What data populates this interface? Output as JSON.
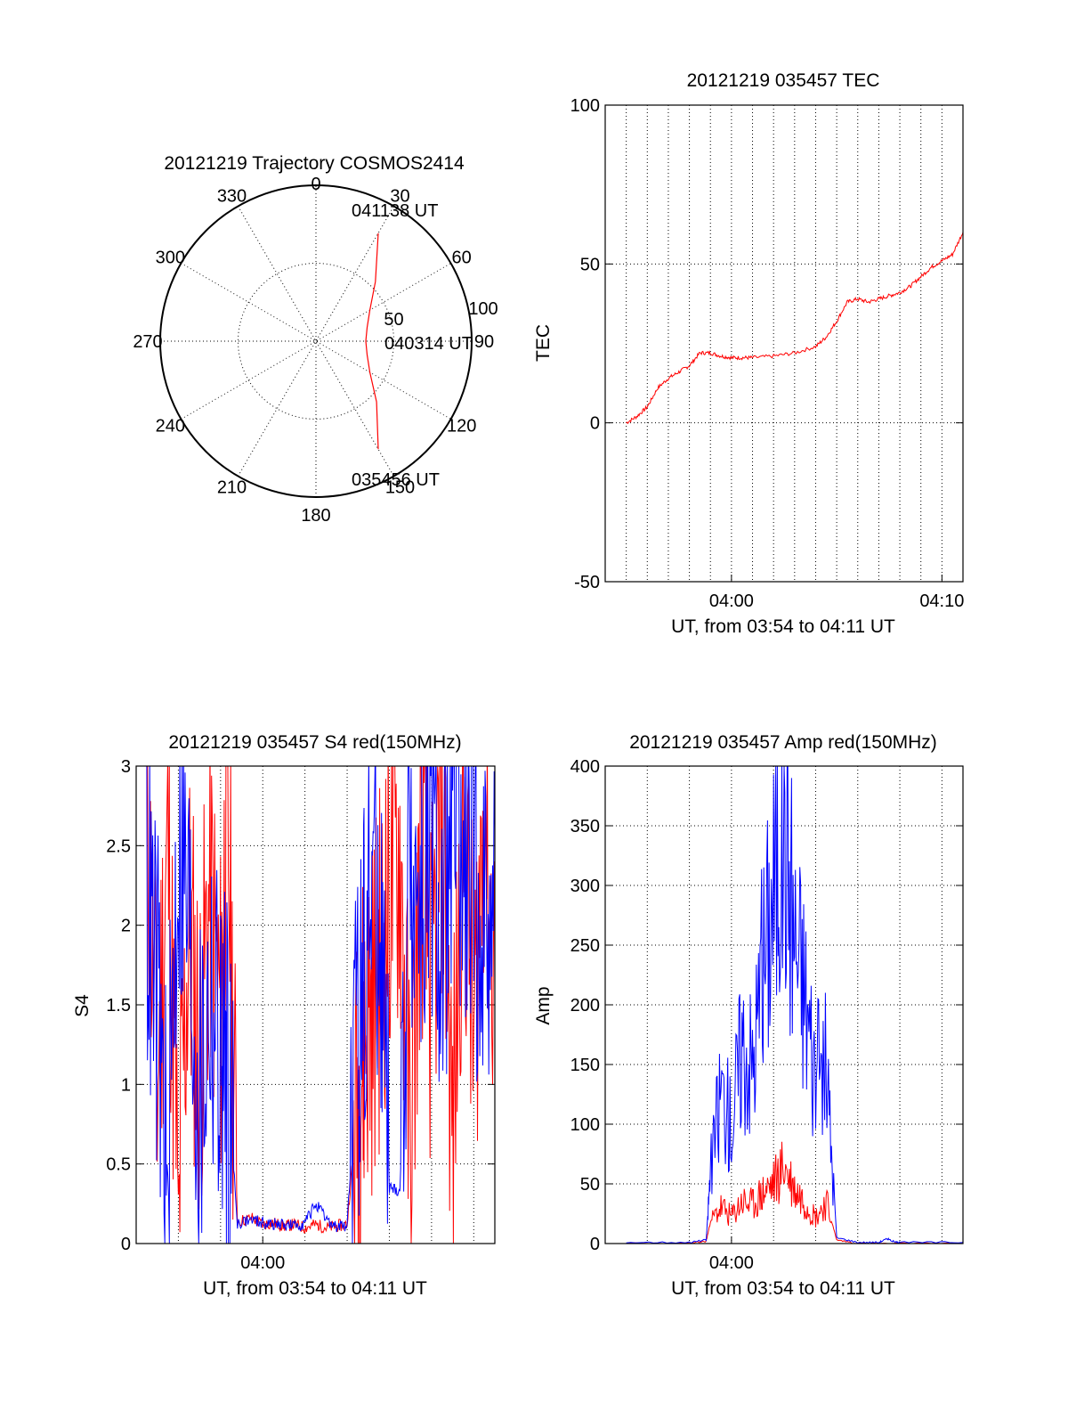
{
  "chart_data": [
    {
      "type": "polar",
      "title": "20121219 Trajectory COSMOS2414",
      "angle_labels": [
        "0",
        "30",
        "60",
        "90",
        "120",
        "150",
        "180",
        "210",
        "240",
        "270",
        "300",
        "330"
      ],
      "radius_labels": [
        "50",
        "100"
      ],
      "series": [
        {
          "points": [
            [
              30,
              80
            ],
            [
              45,
              54
            ],
            [
              60,
              40
            ],
            [
              75,
              34
            ],
            [
              90,
              32
            ],
            [
              105,
              34
            ],
            [
              120,
              40
            ],
            [
              135,
              55
            ],
            [
              150,
              80
            ]
          ]
        }
      ],
      "annotations": [
        "041138 UT",
        "040314 UT",
        "035456 UT"
      ],
      "colors": {
        "trajectory": "#ff0000"
      }
    },
    {
      "type": "line",
      "title": "20121219 035457 TEC",
      "xlabel": "UT, from 03:54 to 04:11 UT",
      "ylabel": "TEC",
      "xlim": [
        0,
        17.0
      ],
      "ylim": [
        -50,
        100
      ],
      "yticks": [
        -50,
        0,
        50,
        100
      ],
      "xticks": [
        {
          "v": 6,
          "label": "04:00"
        },
        {
          "v": 16,
          "label": "04:10"
        }
      ],
      "grid": true,
      "series": [
        {
          "color": "#ff0000",
          "x": [
            1.0,
            1.5,
            2.0,
            2.5,
            3.0,
            3.5,
            4.0,
            4.5,
            5.0,
            5.5,
            6.0,
            6.5,
            7.0,
            8.0,
            9.0,
            10.0,
            10.5,
            11.0,
            11.5,
            12.0,
            12.5,
            13.0,
            13.5,
            14.0,
            14.5,
            15.0,
            15.5,
            16.0,
            16.5,
            17.0
          ],
          "y": [
            0,
            2,
            5,
            11,
            14,
            16,
            18,
            22,
            22,
            21,
            20.5,
            20.5,
            20.5,
            21,
            22,
            24,
            27,
            32,
            38,
            39,
            38,
            39,
            40,
            41,
            43,
            46,
            49,
            51,
            53,
            60
          ]
        }
      ]
    },
    {
      "type": "line",
      "title": "20121219 035457 S4 red(150MHz)",
      "xlabel": "UT, from 03:54 to 04:11 UT",
      "ylabel": "S4",
      "xlim": [
        0,
        17.0
      ],
      "ylim": [
        0,
        3
      ],
      "yticks": [
        0,
        0.5,
        1,
        1.5,
        2,
        2.5,
        3
      ],
      "xticks": [
        {
          "v": 6,
          "label": "04:00"
        }
      ],
      "grid": true,
      "series": [
        {
          "color": "#ff0000",
          "x": [
            0.5,
            1.0,
            1.5,
            2.0,
            2.5,
            3.0,
            3.5,
            4.0,
            4.3,
            4.8,
            5.5,
            6.0,
            6.5,
            7.0,
            7.5,
            8.0,
            8.5,
            9.0,
            9.5,
            10.0,
            10.5,
            10.8,
            11.2,
            11.6,
            12.0,
            12.5,
            13.0,
            13.5,
            14.0,
            14.5,
            15.0,
            15.5,
            16.0,
            16.5,
            17.0
          ],
          "y": [
            2.8,
            1.0,
            2.5,
            0.3,
            2.0,
            1.2,
            2.2,
            1.4,
            2.9,
            0.14,
            0.16,
            0.12,
            0.13,
            0.11,
            0.12,
            0.1,
            0.12,
            0.1,
            0.11,
            0.12,
            0.9,
            1.3,
            1.5,
            1.8,
            2.2,
            2.5,
            0.5,
            2.6,
            1.5,
            2.8,
            0.6,
            2.7,
            1.2,
            2.9,
            1.6
          ]
        },
        {
          "color": "#0000ff",
          "x": [
            0.5,
            1.0,
            1.5,
            2.0,
            2.5,
            3.0,
            3.5,
            4.0,
            4.3,
            4.8,
            5.5,
            6.0,
            6.5,
            7.0,
            7.5,
            8.0,
            8.5,
            9.0,
            9.5,
            10.0,
            10.5,
            10.8,
            11.2,
            11.6,
            12.0,
            12.5,
            13.0,
            13.5,
            14.0,
            14.5,
            15.0,
            15.5,
            16.0,
            16.5,
            17.0
          ],
          "y": [
            2.2,
            1.5,
            0.4,
            2.6,
            2.0,
            0.8,
            1.6,
            1.2,
            1.1,
            0.13,
            0.15,
            0.13,
            0.12,
            0.12,
            0.11,
            0.13,
            0.25,
            0.15,
            0.1,
            0.12,
            1.2,
            1.9,
            2.4,
            2.0,
            0.35,
            0.33,
            2.6,
            2.0,
            2.4,
            1.8,
            2.8,
            2.1,
            2.3,
            2.0,
            2.6
          ]
        }
      ]
    },
    {
      "type": "line",
      "title": "20121219 035457 Amp red(150MHz)",
      "xlabel": "UT, from 03:54 to 04:11 UT",
      "ylabel": "Amp",
      "xlim": [
        0,
        17.0
      ],
      "ylim": [
        0,
        400
      ],
      "yticks": [
        0,
        50,
        100,
        150,
        200,
        250,
        300,
        350,
        400
      ],
      "xticks": [
        {
          "v": 6,
          "label": "04:00"
        }
      ],
      "grid": true,
      "series": [
        {
          "color": "#ff0000",
          "x": [
            1.0,
            4.0,
            4.8,
            5.0,
            5.5,
            6.0,
            6.5,
            7.0,
            7.5,
            8.0,
            8.5,
            9.0,
            9.5,
            10.0,
            10.5,
            11.0,
            12.0,
            14.0,
            17.0
          ],
          "y": [
            0,
            0,
            2,
            18,
            30,
            22,
            35,
            32,
            42,
            50,
            65,
            45,
            35,
            22,
            35,
            3,
            0,
            0,
            0
          ]
        },
        {
          "color": "#0000ff",
          "x": [
            1.0,
            4.0,
            4.8,
            5.0,
            5.5,
            6.0,
            6.5,
            7.0,
            7.5,
            8.0,
            8.5,
            9.0,
            9.5,
            10.0,
            10.5,
            11.0,
            12.0,
            13.0,
            13.4,
            13.8,
            14.0,
            17.0
          ],
          "y": [
            1,
            1,
            3,
            60,
            130,
            100,
            170,
            150,
            230,
            300,
            370,
            260,
            210,
            140,
            150,
            5,
            1,
            1,
            4,
            1,
            1,
            1
          ]
        }
      ]
    }
  ]
}
